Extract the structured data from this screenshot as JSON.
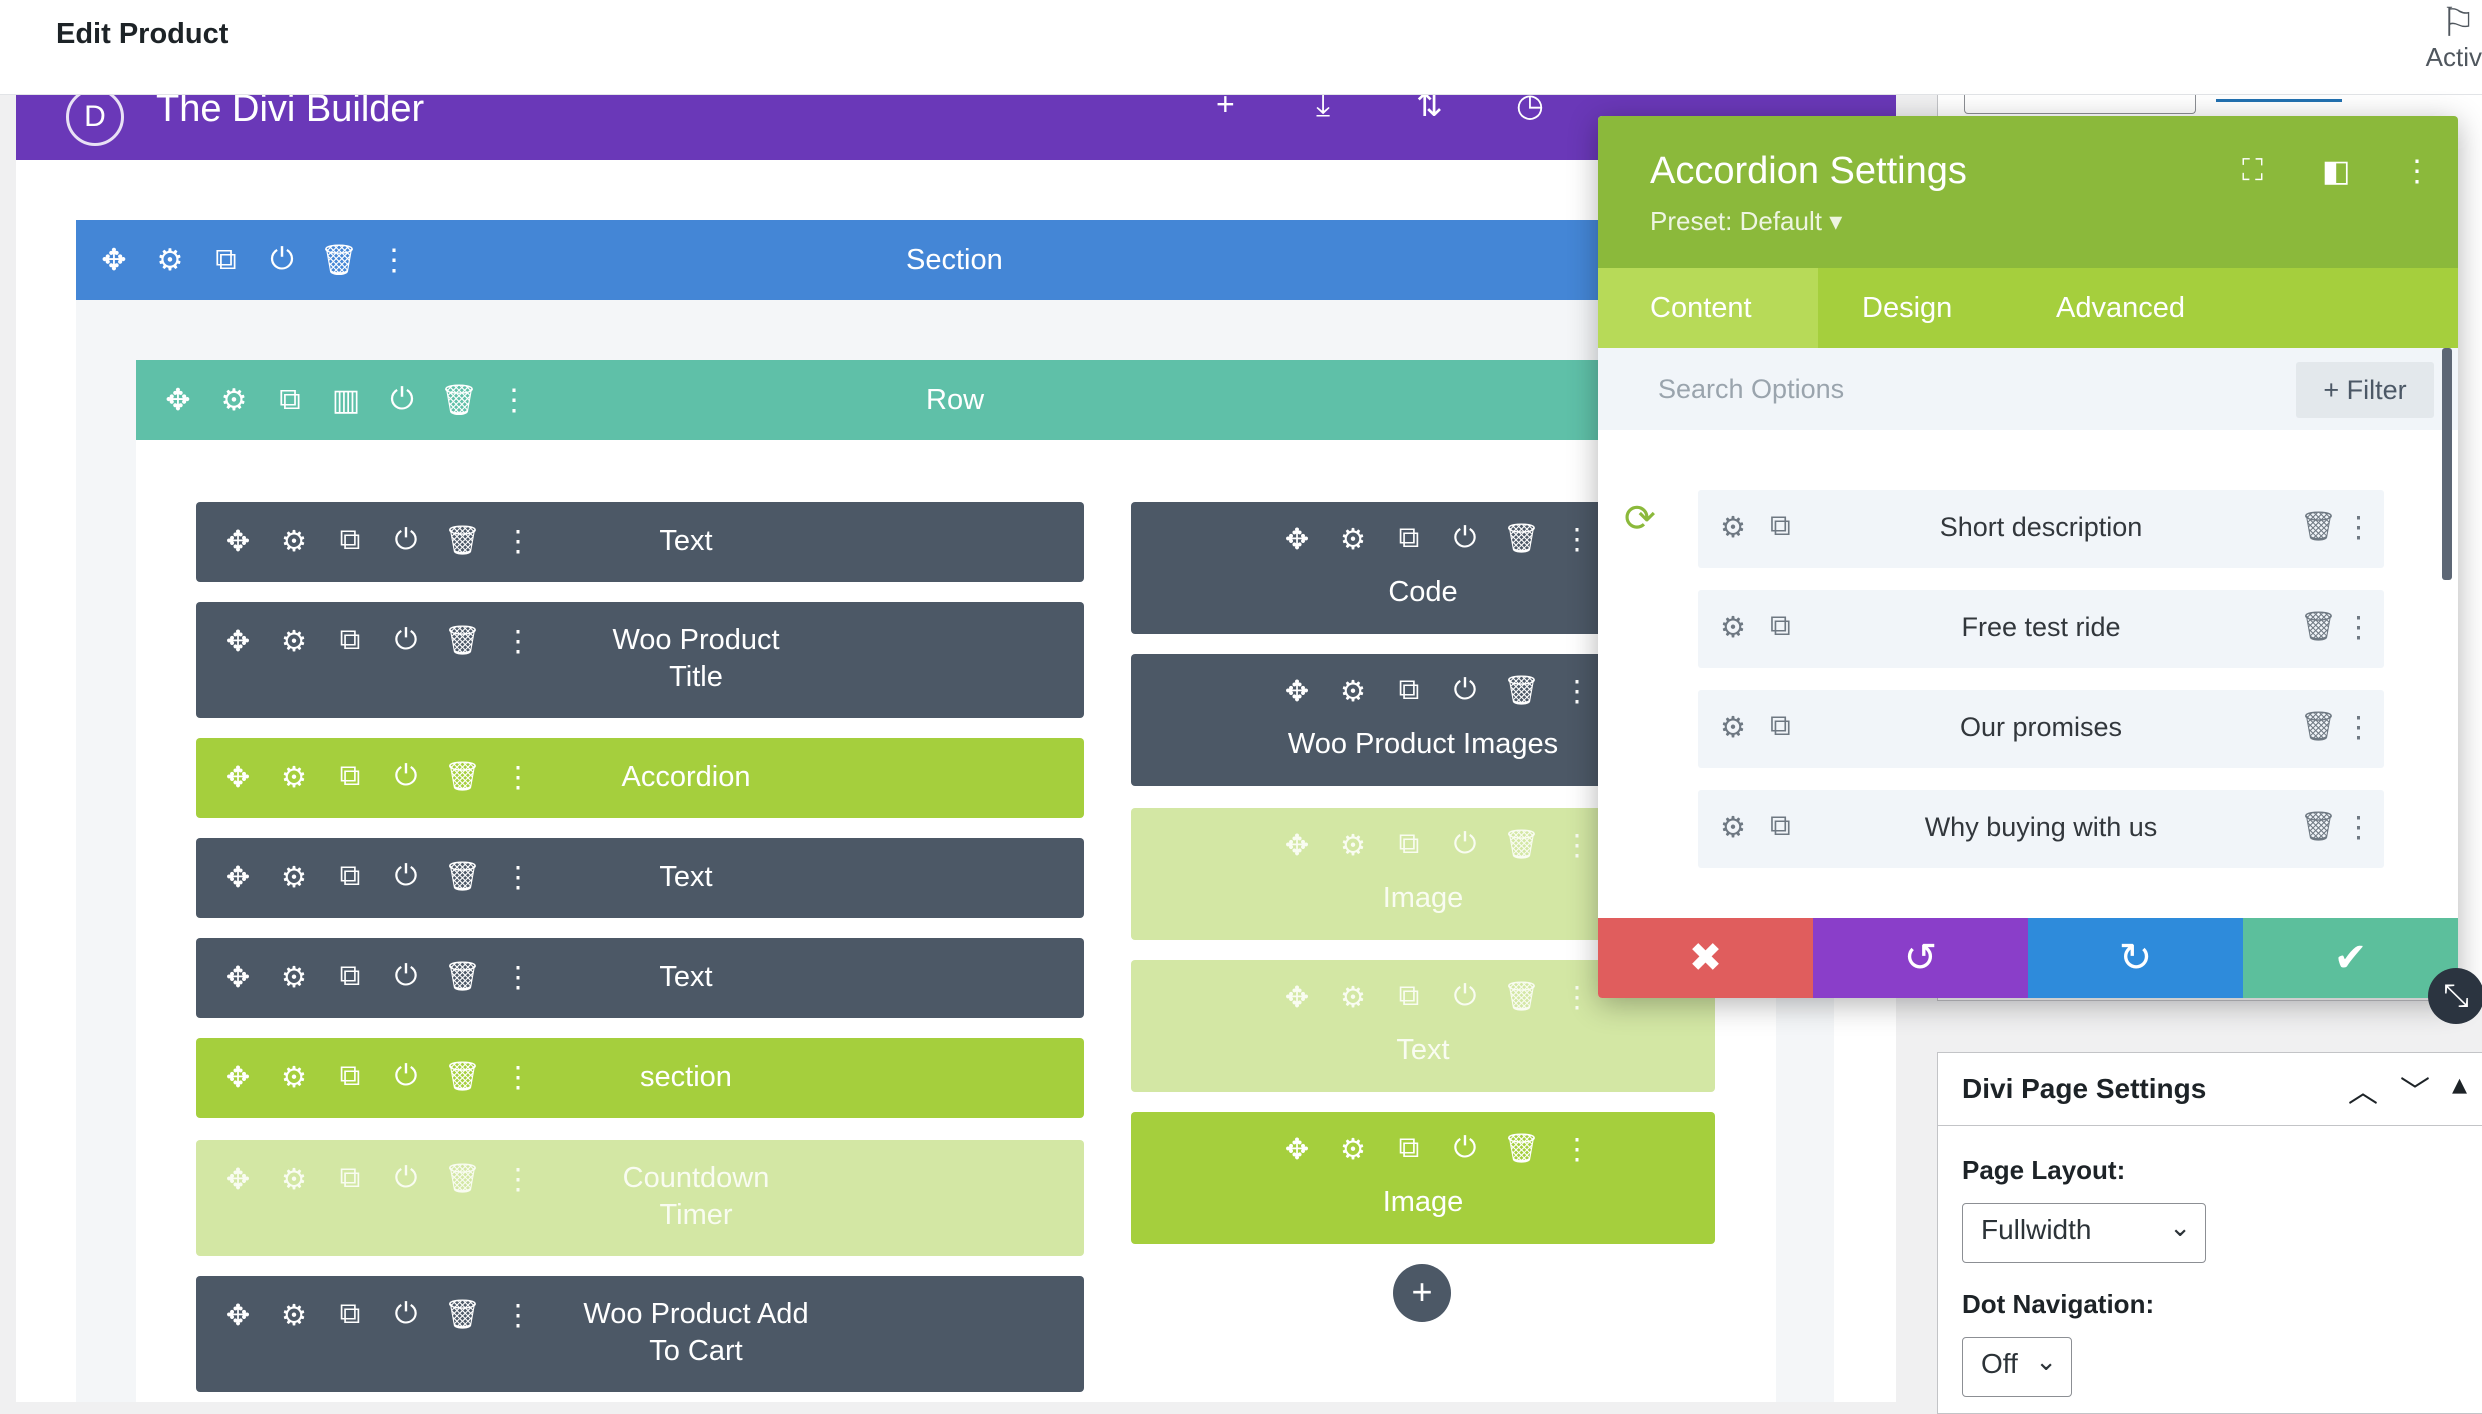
{
  "wp_header": {
    "title": "Edit Product",
    "flag_icon": "flag-icon",
    "right_text": "Activ"
  },
  "divi_bar": {
    "title": "The Divi Builder",
    "logo_letter": "D",
    "tools": [
      "+",
      "⤓",
      "⇅",
      "◷",
      "🗑",
      "⚙",
      "⋮"
    ]
  },
  "section": {
    "label": "Section"
  },
  "row": {
    "label": "Row"
  },
  "modules_left": [
    {
      "label": "Text",
      "style": "dark"
    },
    {
      "label": "Woo Product\nTitle",
      "style": "dark"
    },
    {
      "label": "Accordion",
      "style": "green"
    },
    {
      "label": "Text",
      "style": "dark"
    },
    {
      "label": "Text",
      "style": "dark"
    },
    {
      "label": "section",
      "style": "green"
    },
    {
      "label": "Countdown\nTimer",
      "style": "faded"
    },
    {
      "label": "Woo Product Add\nTo Cart",
      "style": "dark"
    }
  ],
  "modules_right": [
    {
      "label": "Code",
      "style": "dark"
    },
    {
      "label": "Woo Product Images",
      "style": "dark"
    },
    {
      "label": "Image",
      "style": "faded"
    },
    {
      "label": "Text",
      "style": "faded"
    },
    {
      "label": "Image",
      "style": "green"
    }
  ],
  "icons": {
    "move": "✥",
    "settings": "⚙",
    "duplicate": "⧉",
    "columns": "▥",
    "save": "⏻",
    "delete": "🗑",
    "more": "⋮"
  },
  "add_module": "+",
  "modal": {
    "title": "Accordion Settings",
    "preset": "Preset: Default ▾",
    "tabs": [
      "Content",
      "Design",
      "Advanced"
    ],
    "active_tab": "Content",
    "search_placeholder": "Search Options",
    "filter_label": "+ Filter",
    "items": [
      "Short description",
      "Free test ride",
      "Our promises",
      "Why buying with us"
    ],
    "footer": {
      "cancel": "✖",
      "undo": "↺",
      "redo": "↻",
      "save": "✔"
    },
    "colors": {
      "cancel": "#e05d5d",
      "undo": "#8a3ec9",
      "redo": "#2e8bdb",
      "save": "#5cbf9c"
    }
  },
  "page_settings": {
    "title": "Divi Page Settings",
    "page_layout_label": "Page Layout:",
    "page_layout_value": "Fullwidth",
    "dot_nav_label": "Dot Navigation:",
    "dot_nav_value": "Off"
  },
  "colors": {
    "divi_purple": "#6a38b8",
    "section_blue": "#4486d6",
    "row_teal": "#5fc0a8",
    "module_dark": "#4c5866",
    "module_green": "#a5cf3d",
    "modal_green": "#8bb93b"
  }
}
